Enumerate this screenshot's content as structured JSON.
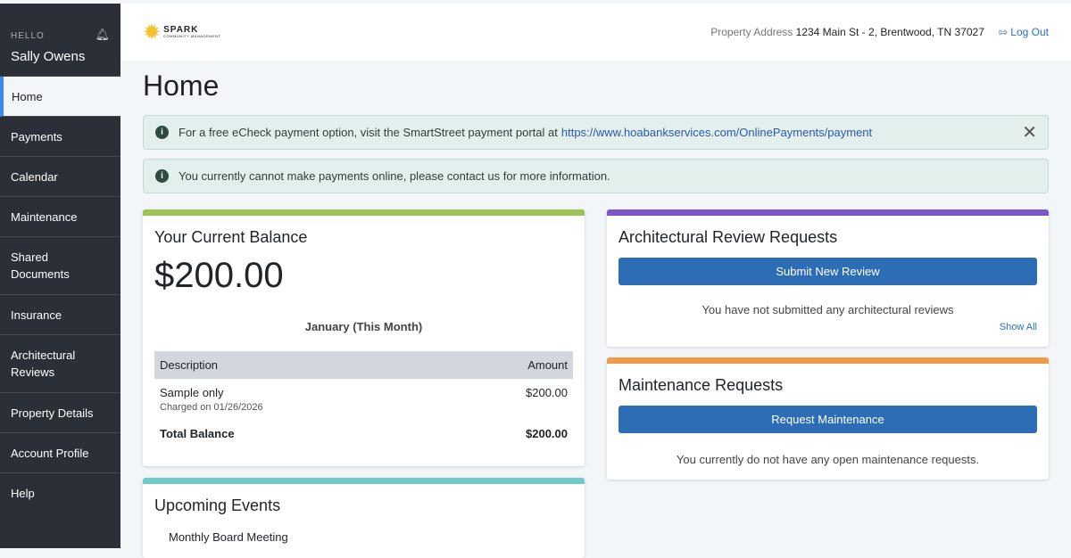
{
  "sidebar": {
    "greeting": "HELLO",
    "user_name": "Sally Owens",
    "items": [
      {
        "label": "Home"
      },
      {
        "label": "Payments"
      },
      {
        "label": "Calendar"
      },
      {
        "label": "Maintenance"
      },
      {
        "label": "Shared Documents"
      },
      {
        "label": "Insurance"
      },
      {
        "label": "Architectural Reviews"
      },
      {
        "label": "Property Details"
      },
      {
        "label": "Account Profile"
      },
      {
        "label": "Help"
      }
    ]
  },
  "header": {
    "logo_text": "SPARK",
    "logo_sub": "COMMUNITY MANAGEMENT",
    "address_label": "Property Address",
    "address": "1234 Main St - 2, Brentwood, TN 37027",
    "logout": "Log Out"
  },
  "page": {
    "title": "Home"
  },
  "alerts": [
    {
      "text": "For a free eCheck payment option, visit the SmartStreet payment portal at",
      "link": "https://www.hoabankservices.com/OnlinePayments/payment"
    },
    {
      "text": "You currently cannot make payments online, please contact us for more information."
    }
  ],
  "balance": {
    "title": "Your Current Balance",
    "amount": "$200.00",
    "period": "January (This Month)",
    "col_desc": "Description",
    "col_amount": "Amount",
    "rows": [
      {
        "desc": "Sample only",
        "sub": "Charged on 01/26/2026",
        "amount": "$200.00"
      }
    ],
    "total_label": "Total Balance",
    "total": "$200.00",
    "accent": "#9cc255"
  },
  "arch": {
    "title": "Architectural Review Requests",
    "button": "Submit New Review",
    "message": "You have not submitted any architectural reviews",
    "show_all": "Show All",
    "accent": "#7a57c9"
  },
  "maint": {
    "title": "Maintenance Requests",
    "button": "Request Maintenance",
    "message": "You currently do not have any open maintenance requests.",
    "accent": "#ef9c4a"
  },
  "events": {
    "title": "Upcoming Events",
    "items": [
      "Monthly Board Meeting"
    ],
    "accent": "#6ecbc9"
  }
}
